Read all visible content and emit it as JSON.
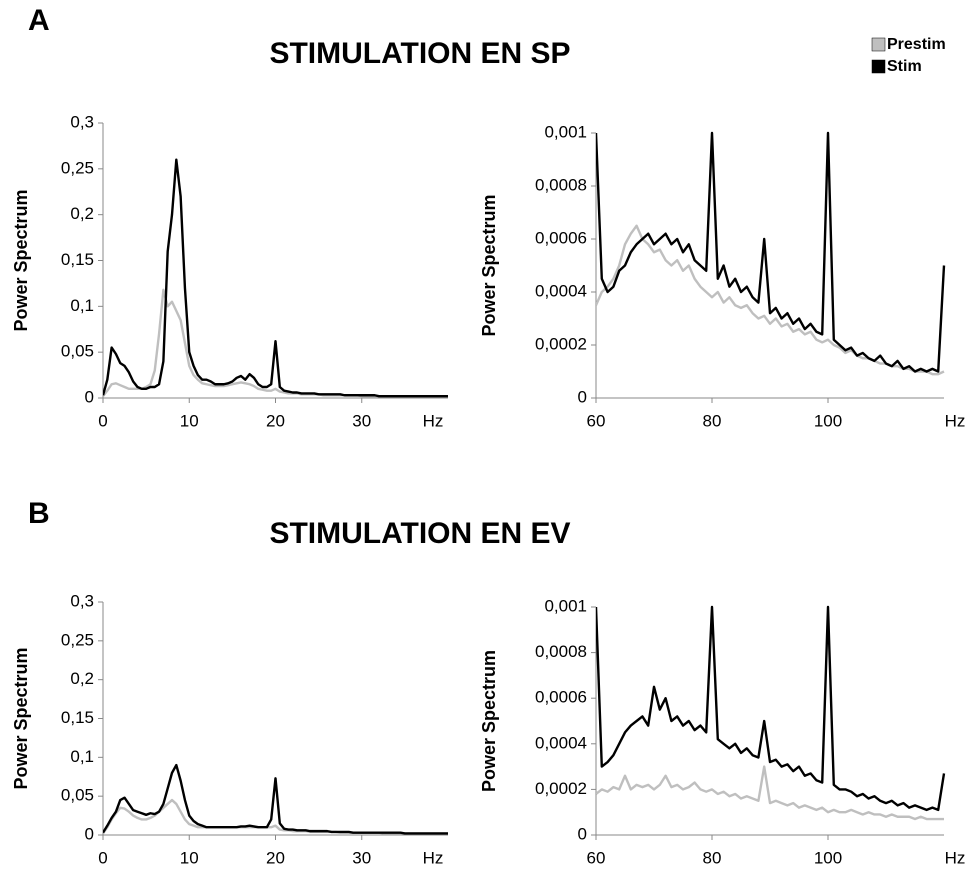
{
  "figure": {
    "sections": [
      {
        "label": "A",
        "title": "STIMULATION EN SP"
      },
      {
        "label": "B",
        "title": "STIMULATION EN EV"
      }
    ]
  },
  "chart_data": [
    {
      "type": "line",
      "ylabel": "Power Spectrum",
      "xlabel": "Hz",
      "x": [
        0,
        0.5,
        1,
        1.5,
        2,
        2.5,
        3,
        3.5,
        4,
        4.5,
        5,
        5.5,
        6,
        6.5,
        7,
        7.5,
        8,
        8.5,
        9,
        9.5,
        10,
        10.5,
        11,
        11.5,
        12,
        12.5,
        13,
        13.5,
        14,
        14.5,
        15,
        15.5,
        16,
        16.5,
        17,
        17.5,
        18,
        18.5,
        19,
        19.5,
        20,
        20.5,
        21,
        21.5,
        22,
        22.5,
        23,
        23.5,
        24,
        24.5,
        25,
        25.5,
        26,
        26.5,
        27,
        27.5,
        28,
        28.5,
        29,
        29.5,
        30,
        30.5,
        31,
        31.5,
        32,
        32.5,
        33,
        33.5,
        34,
        34.5,
        35,
        35.5,
        36,
        36.5,
        37,
        37.5,
        38,
        38.5,
        39,
        39.5,
        40
      ],
      "series": [
        {
          "name": "Prestim",
          "color": "#bfbfbf",
          "values": [
            0.002,
            0.008,
            0.015,
            0.016,
            0.014,
            0.012,
            0.01,
            0.01,
            0.01,
            0.01,
            0.012,
            0.015,
            0.03,
            0.07,
            0.118,
            0.1,
            0.105,
            0.095,
            0.085,
            0.06,
            0.035,
            0.025,
            0.02,
            0.016,
            0.015,
            0.014,
            0.013,
            0.013,
            0.013,
            0.014,
            0.015,
            0.016,
            0.017,
            0.016,
            0.015,
            0.013,
            0.01,
            0.009,
            0.008,
            0.008,
            0.01,
            0.007,
            0.006,
            0.005,
            0.005,
            0.005,
            0.004,
            0.004,
            0.004,
            0.004,
            0.004,
            0.003,
            0.003,
            0.003,
            0.003,
            0.003,
            0.003,
            0.003,
            0.003,
            0.003,
            0.002,
            0.002,
            0.002,
            0.002,
            0.002,
            0.002,
            0.002,
            0.002,
            0.002,
            0.002,
            0.002,
            0.002,
            0.002,
            0.002,
            0.002,
            0.002,
            0.002,
            0.002,
            0.002,
            0.002,
            0.002
          ]
        },
        {
          "name": "Stim",
          "color": "#000000",
          "values": [
            0.003,
            0.02,
            0.055,
            0.048,
            0.038,
            0.035,
            0.028,
            0.018,
            0.012,
            0.01,
            0.01,
            0.012,
            0.012,
            0.015,
            0.04,
            0.16,
            0.2,
            0.26,
            0.22,
            0.12,
            0.05,
            0.035,
            0.025,
            0.02,
            0.02,
            0.018,
            0.015,
            0.015,
            0.015,
            0.016,
            0.018,
            0.022,
            0.024,
            0.02,
            0.026,
            0.022,
            0.015,
            0.012,
            0.012,
            0.015,
            0.062,
            0.012,
            0.008,
            0.007,
            0.006,
            0.006,
            0.005,
            0.005,
            0.005,
            0.005,
            0.004,
            0.004,
            0.004,
            0.004,
            0.004,
            0.004,
            0.003,
            0.003,
            0.003,
            0.003,
            0.003,
            0.003,
            0.003,
            0.003,
            0.002,
            0.002,
            0.002,
            0.002,
            0.002,
            0.002,
            0.002,
            0.002,
            0.002,
            0.002,
            0.002,
            0.002,
            0.002,
            0.002,
            0.002,
            0.002,
            0.002
          ]
        }
      ],
      "xlim": [
        0,
        40
      ],
      "xticks": [
        0,
        10,
        20,
        30
      ],
      "ylim": [
        0,
        0.3
      ],
      "yticks": [
        0,
        {
          "value": 0.05,
          "label": "0,05"
        },
        {
          "value": 0.1,
          "label": "0,1"
        },
        {
          "value": 0.15,
          "label": "0,15"
        },
        {
          "value": 0.2,
          "label": "0,2"
        },
        {
          "value": 0.25,
          "label": "0,25"
        },
        {
          "value": 0.3,
          "label": "0,3"
        }
      ]
    },
    {
      "type": "line",
      "ylabel": "Power Spectrum",
      "xlabel": "Hz",
      "x": [
        60,
        61,
        62,
        63,
        64,
        65,
        66,
        67,
        68,
        69,
        70,
        71,
        72,
        73,
        74,
        75,
        76,
        77,
        78,
        79,
        80,
        81,
        82,
        83,
        84,
        85,
        86,
        87,
        88,
        89,
        90,
        91,
        92,
        93,
        94,
        95,
        96,
        97,
        98,
        99,
        100,
        101,
        102,
        103,
        104,
        105,
        106,
        107,
        108,
        109,
        110,
        111,
        112,
        113,
        114,
        115,
        116,
        117,
        118,
        119,
        120
      ],
      "series": [
        {
          "color": "#bfbfbf",
          "values": [
            0.00035,
            0.0004,
            0.00042,
            0.00045,
            0.0005,
            0.00058,
            0.00062,
            0.00065,
            0.0006,
            0.00058,
            0.00055,
            0.00056,
            0.00052,
            0.0005,
            0.00052,
            0.00048,
            0.0005,
            0.00045,
            0.00042,
            0.0004,
            0.00038,
            0.0004,
            0.00036,
            0.00038,
            0.00035,
            0.00034,
            0.00035,
            0.00032,
            0.0003,
            0.00031,
            0.00028,
            0.0003,
            0.00027,
            0.00028,
            0.00025,
            0.00026,
            0.00024,
            0.00025,
            0.00022,
            0.00021,
            0.00022,
            0.0002,
            0.00019,
            0.00017,
            0.00018,
            0.00016,
            0.00015,
            0.00015,
            0.00014,
            0.00013,
            0.00013,
            0.00012,
            0.00012,
            0.00011,
            0.00011,
            0.0001,
            0.0001,
            0.0001,
            9e-05,
            9e-05,
            0.0001
          ]
        },
        {
          "color": "#000000",
          "values": [
            0.001,
            0.00045,
            0.0004,
            0.00042,
            0.00048,
            0.0005,
            0.00055,
            0.00058,
            0.0006,
            0.00062,
            0.00058,
            0.0006,
            0.00062,
            0.00058,
            0.0006,
            0.00055,
            0.00058,
            0.00052,
            0.0005,
            0.00048,
            0.001,
            0.00045,
            0.0005,
            0.00042,
            0.00045,
            0.0004,
            0.00042,
            0.00038,
            0.00036,
            0.0006,
            0.00032,
            0.00034,
            0.0003,
            0.00032,
            0.00028,
            0.0003,
            0.00026,
            0.00028,
            0.00025,
            0.00024,
            0.001,
            0.00022,
            0.0002,
            0.00018,
            0.00019,
            0.00016,
            0.00017,
            0.00015,
            0.00014,
            0.00016,
            0.00013,
            0.00012,
            0.00014,
            0.00011,
            0.00012,
            0.0001,
            0.00011,
            0.0001,
            0.00011,
            0.0001,
            0.0005
          ]
        }
      ],
      "xlim": [
        60,
        120
      ],
      "xticks": [
        60,
        80,
        100
      ],
      "ylim": [
        0,
        0.001
      ],
      "yticks": [
        0,
        {
          "value": 0.0002,
          "label": "0,0002"
        },
        {
          "value": 0.0004,
          "label": "0,0004"
        },
        {
          "value": 0.0006,
          "label": "0,0006"
        },
        {
          "value": 0.0008,
          "label": "0,0008"
        },
        {
          "value": 0.001,
          "label": "0,001"
        }
      ]
    },
    {
      "type": "line",
      "ylabel": "Power Spectrum",
      "xlabel": "Hz",
      "x": [
        0,
        0.5,
        1,
        1.5,
        2,
        2.5,
        3,
        3.5,
        4,
        4.5,
        5,
        5.5,
        6,
        6.5,
        7,
        7.5,
        8,
        8.5,
        9,
        9.5,
        10,
        10.5,
        11,
        11.5,
        12,
        12.5,
        13,
        13.5,
        14,
        14.5,
        15,
        15.5,
        16,
        16.5,
        17,
        17.5,
        18,
        18.5,
        19,
        19.5,
        20,
        20.5,
        21,
        21.5,
        22,
        22.5,
        23,
        23.5,
        24,
        24.5,
        25,
        25.5,
        26,
        26.5,
        27,
        27.5,
        28,
        28.5,
        29,
        29.5,
        30,
        30.5,
        31,
        31.5,
        32,
        32.5,
        33,
        33.5,
        34,
        34.5,
        35,
        35.5,
        36,
        36.5,
        37,
        37.5,
        38,
        38.5,
        39,
        39.5,
        40
      ],
      "series": [
        {
          "color": "#bfbfbf",
          "values": [
            0.002,
            0.01,
            0.02,
            0.028,
            0.035,
            0.034,
            0.03,
            0.025,
            0.022,
            0.02,
            0.02,
            0.022,
            0.025,
            0.03,
            0.035,
            0.04,
            0.045,
            0.04,
            0.03,
            0.02,
            0.014,
            0.012,
            0.01,
            0.01,
            0.01,
            0.01,
            0.01,
            0.01,
            0.01,
            0.01,
            0.01,
            0.01,
            0.01,
            0.01,
            0.01,
            0.01,
            0.01,
            0.01,
            0.01,
            0.01,
            0.012,
            0.007,
            0.006,
            0.006,
            0.005,
            0.005,
            0.005,
            0.005,
            0.004,
            0.004,
            0.004,
            0.004,
            0.004,
            0.004,
            0.004,
            0.003,
            0.003,
            0.003,
            0.003,
            0.003,
            0.003,
            0.003,
            0.003,
            0.003,
            0.003,
            0.002,
            0.002,
            0.002,
            0.002,
            0.002,
            0.002,
            0.002,
            0.002,
            0.002,
            0.002,
            0.002,
            0.002,
            0.002,
            0.002,
            0.002,
            0.002
          ]
        },
        {
          "color": "#000000",
          "values": [
            0.003,
            0.012,
            0.022,
            0.03,
            0.045,
            0.048,
            0.04,
            0.032,
            0.03,
            0.028,
            0.026,
            0.028,
            0.027,
            0.03,
            0.04,
            0.06,
            0.08,
            0.09,
            0.07,
            0.045,
            0.025,
            0.018,
            0.014,
            0.012,
            0.01,
            0.01,
            0.01,
            0.01,
            0.01,
            0.01,
            0.01,
            0.01,
            0.011,
            0.011,
            0.012,
            0.011,
            0.01,
            0.01,
            0.01,
            0.02,
            0.073,
            0.015,
            0.008,
            0.007,
            0.007,
            0.006,
            0.006,
            0.006,
            0.005,
            0.005,
            0.005,
            0.005,
            0.005,
            0.004,
            0.004,
            0.004,
            0.004,
            0.004,
            0.003,
            0.003,
            0.003,
            0.003,
            0.003,
            0.003,
            0.003,
            0.003,
            0.003,
            0.003,
            0.003,
            0.003,
            0.002,
            0.002,
            0.002,
            0.002,
            0.002,
            0.002,
            0.002,
            0.002,
            0.002,
            0.002,
            0.002
          ]
        }
      ],
      "xlim": [
        0,
        40
      ],
      "xticks": [
        0,
        10,
        20,
        30
      ],
      "ylim": [
        0,
        0.3
      ],
      "yticks": [
        0,
        {
          "value": 0.05,
          "label": "0,05"
        },
        {
          "value": 0.1,
          "label": "0,1"
        },
        {
          "value": 0.15,
          "label": "0,15"
        },
        {
          "value": 0.2,
          "label": "0,2"
        },
        {
          "value": 0.25,
          "label": "0,25"
        },
        {
          "value": 0.3,
          "label": "0,3"
        }
      ]
    },
    {
      "type": "line",
      "ylabel": "Power Spectrum",
      "xlabel": "Hz",
      "x": [
        60,
        61,
        62,
        63,
        64,
        65,
        66,
        67,
        68,
        69,
        70,
        71,
        72,
        73,
        74,
        75,
        76,
        77,
        78,
        79,
        80,
        81,
        82,
        83,
        84,
        85,
        86,
        87,
        88,
        89,
        90,
        91,
        92,
        93,
        94,
        95,
        96,
        97,
        98,
        99,
        100,
        101,
        102,
        103,
        104,
        105,
        106,
        107,
        108,
        109,
        110,
        111,
        112,
        113,
        114,
        115,
        116,
        117,
        118,
        119,
        120
      ],
      "series": [
        {
          "color": "#bfbfbf",
          "values": [
            0.00018,
            0.0002,
            0.00019,
            0.00021,
            0.0002,
            0.00026,
            0.0002,
            0.00022,
            0.00021,
            0.00022,
            0.0002,
            0.00022,
            0.00026,
            0.00021,
            0.00022,
            0.0002,
            0.00021,
            0.00023,
            0.0002,
            0.00019,
            0.0002,
            0.00018,
            0.00019,
            0.00017,
            0.00018,
            0.00016,
            0.00017,
            0.00016,
            0.00015,
            0.0003,
            0.00014,
            0.00015,
            0.00014,
            0.00013,
            0.00014,
            0.00012,
            0.00013,
            0.00012,
            0.00011,
            0.00012,
            0.0001,
            0.00011,
            0.0001,
            0.0001,
            0.00011,
            0.0001,
            9e-05,
            0.0001,
            9e-05,
            9e-05,
            8e-05,
            9e-05,
            8e-05,
            8e-05,
            8e-05,
            7e-05,
            8e-05,
            7e-05,
            7e-05,
            7e-05,
            7e-05
          ]
        },
        {
          "color": "#000000",
          "values": [
            0.001,
            0.0003,
            0.00032,
            0.00035,
            0.0004,
            0.00045,
            0.00048,
            0.0005,
            0.00052,
            0.00048,
            0.00065,
            0.00055,
            0.0006,
            0.0005,
            0.00052,
            0.00048,
            0.0005,
            0.00046,
            0.00048,
            0.00045,
            0.001,
            0.00042,
            0.0004,
            0.00038,
            0.0004,
            0.00036,
            0.00038,
            0.00035,
            0.00034,
            0.0005,
            0.00032,
            0.00033,
            0.0003,
            0.00031,
            0.00028,
            0.0003,
            0.00026,
            0.00027,
            0.00024,
            0.00023,
            0.001,
            0.00022,
            0.0002,
            0.0002,
            0.00019,
            0.00017,
            0.00018,
            0.00016,
            0.00017,
            0.00015,
            0.00014,
            0.00015,
            0.00013,
            0.00014,
            0.00012,
            0.00013,
            0.00012,
            0.00011,
            0.00012,
            0.00011,
            0.00027
          ]
        }
      ],
      "xlim": [
        60,
        120
      ],
      "xticks": [
        60,
        80,
        100
      ],
      "ylim": [
        0,
        0.001
      ],
      "yticks": [
        0,
        {
          "value": 0.0002,
          "label": "0,0002"
        },
        {
          "value": 0.0004,
          "label": "0,0004"
        },
        {
          "value": 0.0006,
          "label": "0,0006"
        },
        {
          "value": 0.0008,
          "label": "0,0008"
        },
        {
          "value": 0.001,
          "label": "0,001"
        }
      ]
    }
  ]
}
